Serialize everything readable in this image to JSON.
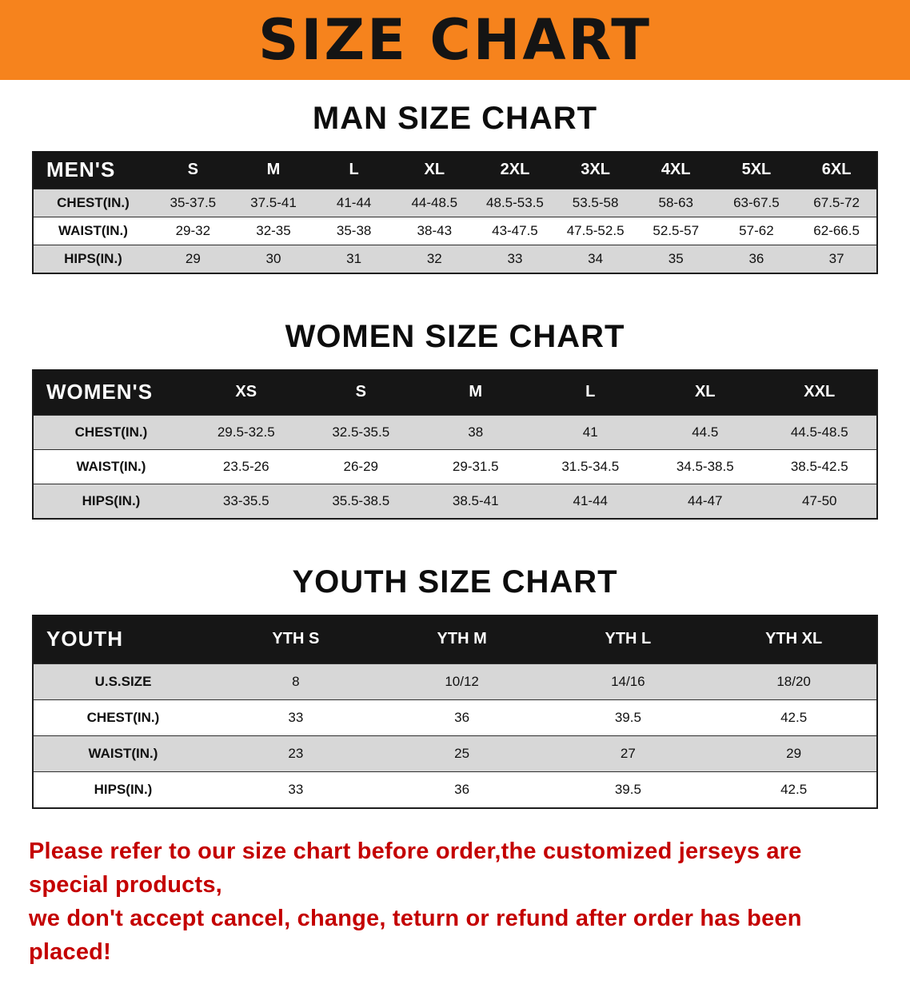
{
  "banner": {
    "title": "SIZE CHART",
    "bg_color": "#f6831d",
    "title_color": "#141414"
  },
  "chart_data": [
    {
      "type": "table",
      "title": "MAN SIZE CHART",
      "columns": [
        "MEN'S",
        "S",
        "M",
        "L",
        "XL",
        "2XL",
        "3XL",
        "4XL",
        "5XL",
        "6XL"
      ],
      "rows": [
        [
          "CHEST(IN.)",
          "35-37.5",
          "37.5-41",
          "41-44",
          "44-48.5",
          "48.5-53.5",
          "53.5-58",
          "58-63",
          "63-67.5",
          "67.5-72"
        ],
        [
          "WAIST(IN.)",
          "29-32",
          "32-35",
          "35-38",
          "38-43",
          "43-47.5",
          "47.5-52.5",
          "52.5-57",
          "57-62",
          "62-66.5"
        ],
        [
          "HIPS(IN.)",
          "29",
          "30",
          "31",
          "32",
          "33",
          "34",
          "35",
          "36",
          "37"
        ]
      ]
    },
    {
      "type": "table",
      "title": "WOMEN SIZE CHART",
      "columns": [
        "WOMEN'S",
        "XS",
        "S",
        "M",
        "L",
        "XL",
        "XXL"
      ],
      "rows": [
        [
          "CHEST(IN.)",
          "29.5-32.5",
          "32.5-35.5",
          "38",
          "41",
          "44.5",
          "44.5-48.5"
        ],
        [
          "WAIST(IN.)",
          "23.5-26",
          "26-29",
          "29-31.5",
          "31.5-34.5",
          "34.5-38.5",
          "38.5-42.5"
        ],
        [
          "HIPS(IN.)",
          "33-35.5",
          "35.5-38.5",
          "38.5-41",
          "41-44",
          "44-47",
          "47-50"
        ]
      ]
    },
    {
      "type": "table",
      "title": "YOUTH SIZE CHART",
      "columns": [
        "YOUTH",
        "YTH S",
        "YTH M",
        "YTH L",
        "YTH XL"
      ],
      "rows": [
        [
          "U.S.SIZE",
          "8",
          "10/12",
          "14/16",
          "18/20"
        ],
        [
          "CHEST(IN.)",
          "33",
          "36",
          "39.5",
          "42.5"
        ],
        [
          "WAIST(IN.)",
          "23",
          "25",
          "27",
          "29"
        ],
        [
          "HIPS(IN.)",
          "33",
          "36",
          "39.5",
          "42.5"
        ]
      ]
    }
  ],
  "disclaimer": {
    "line1": "Please refer to our size chart before order,the customized jerseys are special products,",
    "line2": "we don't accept cancel, change, teturn or refund after order has been placed!",
    "color": "#c40000"
  }
}
